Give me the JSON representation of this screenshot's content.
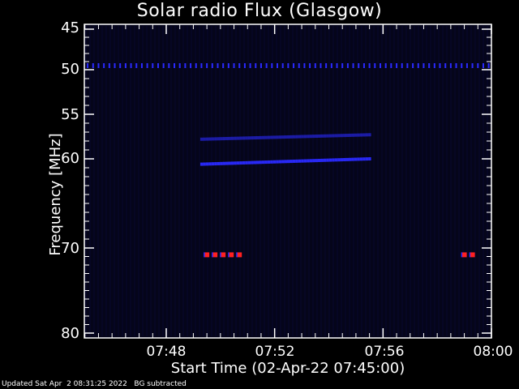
{
  "title": "Solar radio Flux (Glasgow)",
  "y_axis_label": "Frequency [MHz]",
  "x_axis_label": "Start Time (02-Apr-22 07:45:00)",
  "footer_text": "Updated Sat Apr  2 08:31:25 2022   BG subtracted",
  "colors": {
    "background": "#000000",
    "plot_bg": "#05051a",
    "axes": "#ffffff",
    "emission": "#2a2aff",
    "hot": "#ff2020"
  },
  "chart_data": {
    "type": "heatmap",
    "title": "Solar radio Flux (Glasgow)",
    "xlabel": "Start Time (02-Apr-22 07:45:00)",
    "ylabel": "Frequency [MHz]",
    "x_range_minutes": [
      0,
      15
    ],
    "y_range_mhz": [
      45,
      80
    ],
    "x_ticks": [
      {
        "label": "07:48",
        "minute": 3
      },
      {
        "label": "07:52",
        "minute": 7
      },
      {
        "label": "07:56",
        "minute": 11
      },
      {
        "label": "08:00",
        "minute": 15
      }
    ],
    "y_ticks": [
      {
        "label": "45",
        "mhz": 45
      },
      {
        "label": "50",
        "mhz": 50
      },
      {
        "label": "55",
        "mhz": 55
      },
      {
        "label": "60",
        "mhz": 60
      },
      {
        "label": "70",
        "mhz": 70
      },
      {
        "label": "80",
        "mhz": 80
      }
    ],
    "features": [
      {
        "name": "interference-band",
        "freq_mhz": 49.6,
        "minute_start": 0,
        "minute_end": 15,
        "intensity": "medium"
      },
      {
        "name": "drifting-band-lower",
        "freq_start_mhz": 60.6,
        "freq_end_mhz": 60.0,
        "minute_start": 4.3,
        "minute_end": 10.5,
        "intensity": "medium"
      },
      {
        "name": "drifting-band-upper",
        "freq_start_mhz": 57.8,
        "freq_end_mhz": 57.3,
        "minute_start": 4.3,
        "minute_end": 10.5,
        "intensity": "low"
      },
      {
        "name": "hot-spots-70mhz",
        "freq_mhz": 70.8,
        "minutes": [
          4.5,
          4.8,
          5.1,
          5.4,
          5.7,
          14.0,
          14.3
        ],
        "intensity": "high"
      }
    ]
  }
}
